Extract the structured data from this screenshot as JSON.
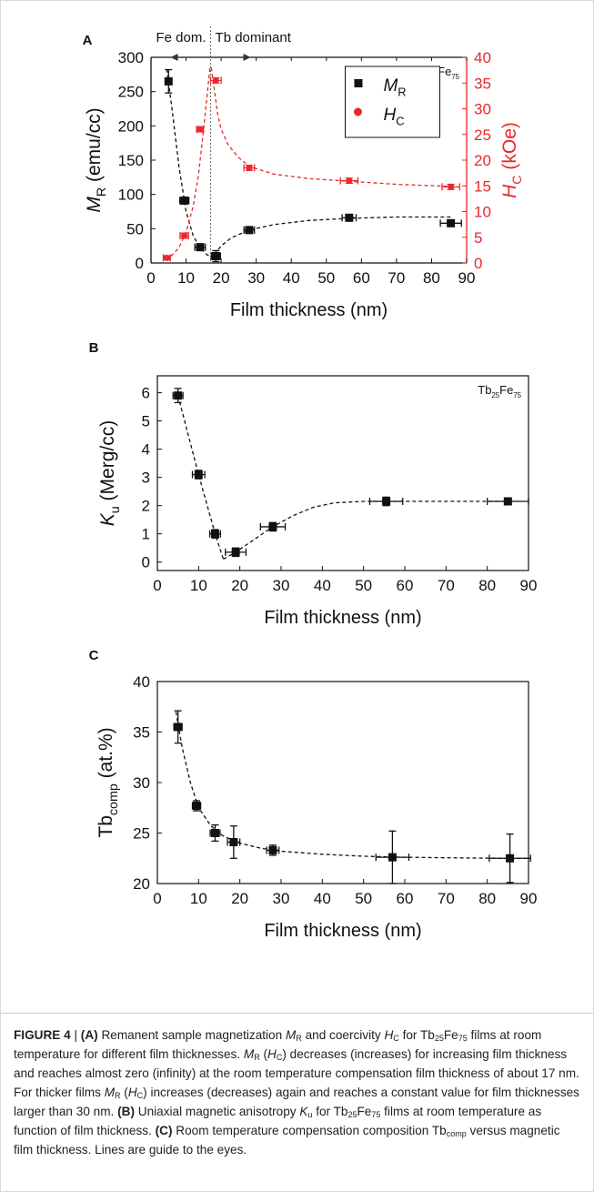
{
  "colors": {
    "black": "#111111",
    "red": "#e8282b",
    "panel_bg": "#ffffff"
  },
  "chart_data": [
    {
      "panel_letter": "A",
      "type": "scatter",
      "title": "",
      "xlabel": "Film thickness (nm)",
      "ylabel": "M_R (emu/cc)",
      "ylabel_right": "H_C (kOe)",
      "xlim": [
        0,
        90
      ],
      "ylim": [
        0,
        300
      ],
      "ylim_right": [
        0,
        40
      ],
      "xticks": [
        "0",
        "10",
        "20",
        "30",
        "40",
        "50",
        "60",
        "70",
        "80",
        "90"
      ],
      "yticks": [
        "0",
        "50",
        "100",
        "150",
        "200",
        "250",
        "300"
      ],
      "yticks_right": [
        "0",
        "5",
        "10",
        "15",
        "20",
        "25",
        "30",
        "35",
        "40"
      ],
      "sample_label": "Tb25Fe75",
      "annotations": {
        "left": "Fe dom.",
        "right": "Tb dominant",
        "compensation_x": 17
      },
      "legend": {
        "placement": "top-right",
        "entries": [
          "M_R",
          "H_C"
        ]
      },
      "series": [
        {
          "name": "M_R",
          "axis": "left",
          "color": "#111111",
          "marker": "square",
          "points": [
            {
              "x": 5,
              "y": 265,
              "xerr": 0,
              "yerr": 17
            },
            {
              "x": 9.5,
              "y": 91,
              "xerr": 1.3,
              "yerr": 4
            },
            {
              "x": 14,
              "y": 23,
              "xerr": 1.5,
              "yerr": 4
            },
            {
              "x": 18.5,
              "y": 10,
              "xerr": 1.3,
              "yerr": 8
            },
            {
              "x": 28,
              "y": 48,
              "xerr": 1.5,
              "yerr": 4
            },
            {
              "x": 56.5,
              "y": 66,
              "xerr": 2,
              "yerr": 4
            },
            {
              "x": 85.5,
              "y": 58,
              "xerr": 3,
              "yerr": 4
            }
          ],
          "fit_curves": [
            [
              [
                4.5,
                283
              ],
              [
                6,
                225
              ],
              [
                8,
                140
              ],
              [
                10,
                75
              ],
              [
                12,
                40
              ],
              [
                14,
                22
              ],
              [
                16,
                12
              ],
              [
                17,
                9
              ]
            ],
            [
              [
                17,
                5
              ],
              [
                18,
                12
              ],
              [
                20,
                25
              ],
              [
                23,
                37
              ],
              [
                28,
                48
              ],
              [
                35,
                56
              ],
              [
                45,
                62
              ],
              [
                56.5,
                65
              ],
              [
                70,
                67
              ],
              [
                85.5,
                67
              ]
            ]
          ]
        },
        {
          "name": "H_C",
          "axis": "right",
          "color": "#e8282b",
          "marker": "circle",
          "points": [
            {
              "x": 4.5,
              "y": 1,
              "xerr": 1,
              "yerr": 0.4
            },
            {
              "x": 9.5,
              "y": 5.3,
              "xerr": 1.2,
              "yerr": 0.5
            },
            {
              "x": 14,
              "y": 26,
              "xerr": 1,
              "yerr": 0.5
            },
            {
              "x": 18.5,
              "y": 35.5,
              "xerr": 1.5,
              "yerr": 0.5
            },
            {
              "x": 28,
              "y": 18.5,
              "xerr": 1.5,
              "yerr": 0.5
            },
            {
              "x": 56.5,
              "y": 16,
              "xerr": 2.5,
              "yerr": 0.5
            },
            {
              "x": 85.5,
              "y": 14.8,
              "xerr": 2.5,
              "yerr": 0.5
            }
          ],
          "fit_curves": [
            [
              [
                4,
                0.8
              ],
              [
                6,
                1.5
              ],
              [
                8,
                3
              ],
              [
                10,
                6
              ],
              [
                12,
                11
              ],
              [
                13.5,
                17
              ],
              [
                15,
                26
              ],
              [
                16.2,
                34
              ],
              [
                16.8,
                38
              ]
            ],
            [
              [
                17.2,
                38
              ],
              [
                18,
                34
              ],
              [
                19,
                29
              ],
              [
                20,
                26
              ],
              [
                22,
                23
              ],
              [
                25,
                20.5
              ],
              [
                28,
                18.8
              ],
              [
                35,
                17.3
              ],
              [
                45,
                16.4
              ],
              [
                56.5,
                15.9
              ],
              [
                70,
                15.3
              ],
              [
                85.5,
                14.9
              ]
            ]
          ]
        }
      ]
    },
    {
      "panel_letter": "B",
      "type": "scatter",
      "title": "",
      "xlabel": "Film thickness (nm)",
      "ylabel": "K_u (Merg/cc)",
      "xlim": [
        0,
        90
      ],
      "ylim": [
        -0.3,
        6.6
      ],
      "xticks": [
        "0",
        "10",
        "20",
        "30",
        "40",
        "50",
        "60",
        "70",
        "80",
        "90"
      ],
      "yticks": [
        "0",
        "1",
        "2",
        "3",
        "4",
        "5",
        "6"
      ],
      "sample_label": "Tb25Fe75",
      "series": [
        {
          "name": "",
          "color": "#111111",
          "marker": "square",
          "points": [
            {
              "x": 5,
              "y": 5.9,
              "xerr": 1.2,
              "yerr": 0.25
            },
            {
              "x": 10,
              "y": 3.1,
              "xerr": 1.5,
              "yerr": 0.15
            },
            {
              "x": 14,
              "y": 1.0,
              "xerr": 1.3,
              "yerr": 0.15
            },
            {
              "x": 19,
              "y": 0.35,
              "xerr": 2.5,
              "yerr": 0.15
            },
            {
              "x": 28,
              "y": 1.25,
              "xerr": 3,
              "yerr": 0.15
            },
            {
              "x": 55.5,
              "y": 2.15,
              "xerr": 4,
              "yerr": 0.15
            },
            {
              "x": 85,
              "y": 2.15,
              "xerr": 5,
              "yerr": 0.1
            }
          ],
          "fit_curves": [
            [
              [
                5,
                5.9
              ],
              [
                10,
                3.1
              ],
              [
                14,
                1.0
              ],
              [
                16,
                0.1
              ]
            ],
            [
              [
                16,
                0.1
              ],
              [
                19,
                0.35
              ],
              [
                23,
                0.75
              ],
              [
                28,
                1.25
              ],
              [
                33,
                1.65
              ],
              [
                38,
                1.95
              ],
              [
                43,
                2.1
              ],
              [
                50,
                2.15
              ],
              [
                60,
                2.15
              ],
              [
                70,
                2.15
              ],
              [
                86,
                2.15
              ]
            ]
          ]
        }
      ]
    },
    {
      "panel_letter": "C",
      "type": "scatter",
      "title": "",
      "xlabel": "Film thickness (nm)",
      "ylabel": "Tb_comp (at.%)",
      "xlim": [
        0,
        90
      ],
      "ylim": [
        20,
        40
      ],
      "xticks": [
        "0",
        "10",
        "20",
        "30",
        "40",
        "50",
        "60",
        "70",
        "80",
        "90"
      ],
      "yticks": [
        "20",
        "25",
        "30",
        "35",
        "40"
      ],
      "series": [
        {
          "name": "",
          "color": "#111111",
          "marker": "square",
          "points": [
            {
              "x": 5,
              "y": 35.5,
              "xerr": 1,
              "yerr": 1.6
            },
            {
              "x": 9.5,
              "y": 27.7,
              "xerr": 1,
              "yerr": 0.5
            },
            {
              "x": 14,
              "y": 25,
              "xerr": 1.2,
              "yerr": 0.8
            },
            {
              "x": 18.5,
              "y": 24.1,
              "xerr": 1.5,
              "yerr": 1.6
            },
            {
              "x": 28,
              "y": 23.3,
              "xerr": 1.5,
              "yerr": 0.5
            },
            {
              "x": 57,
              "y": 22.6,
              "xerr": 4,
              "yerr": 2.6
            },
            {
              "x": 85.5,
              "y": 22.5,
              "xerr": 5,
              "yerr": 2.4
            }
          ],
          "fit_curves": [
            [
              [
                4.5,
                37
              ],
              [
                6,
                33.5
              ],
              [
                8,
                30
              ],
              [
                10,
                27.5
              ],
              [
                13,
                25.7
              ],
              [
                16,
                24.7
              ],
              [
                20,
                24
              ],
              [
                25,
                23.5
              ],
              [
                30,
                23.2
              ],
              [
                40,
                22.9
              ],
              [
                50,
                22.7
              ],
              [
                60,
                22.6
              ],
              [
                70,
                22.55
              ],
              [
                85,
                22.5
              ],
              [
                90,
                22.5
              ]
            ]
          ]
        }
      ]
    }
  ],
  "caption": {
    "figure_label": "FIGURE 4",
    "separator": " | ",
    "segments": [
      {
        "t": "(A)",
        "b": true
      },
      {
        "t": " Remanent sample magnetization "
      },
      {
        "t": "M",
        "i": true
      },
      {
        "t": "R",
        "sub": true
      },
      {
        "t": " and coercivity "
      },
      {
        "t": "H",
        "i": true
      },
      {
        "t": "C",
        "sub": true
      },
      {
        "t": " for Tb"
      },
      {
        "t": "25",
        "sub": true
      },
      {
        "t": "Fe"
      },
      {
        "t": "75",
        "sub": true
      },
      {
        "t": " films at room temperature for different film thicknesses. "
      },
      {
        "t": "M",
        "i": true
      },
      {
        "t": "R",
        "sub": true
      },
      {
        "t": " ("
      },
      {
        "t": "H",
        "i": true
      },
      {
        "t": "C",
        "sub": true
      },
      {
        "t": ") decreases (increases) for increasing film thickness and reaches almost zero (infinity) at the room temperature compensation film thickness of about 17 nm. For thicker films "
      },
      {
        "t": "M",
        "i": true
      },
      {
        "t": "R",
        "sub": true
      },
      {
        "t": " ("
      },
      {
        "t": "H",
        "i": true
      },
      {
        "t": "C",
        "sub": true
      },
      {
        "t": ") increases (decreases) again and reaches a constant value for film thicknesses larger than 30 nm. "
      },
      {
        "t": "(B)",
        "b": true
      },
      {
        "t": " Uniaxial magnetic anisotropy "
      },
      {
        "t": "K",
        "i": true
      },
      {
        "t": "u",
        "sub": true
      },
      {
        "t": " for Tb"
      },
      {
        "t": "25",
        "sub": true
      },
      {
        "t": "Fe"
      },
      {
        "t": "75",
        "sub": true
      },
      {
        "t": " films at room temperature as function of film thickness. "
      },
      {
        "t": "(C)",
        "b": true
      },
      {
        "t": " Room temperature compensation composition Tb"
      },
      {
        "t": "comp",
        "sub": true
      },
      {
        "t": " versus magnetic film thickness. Lines are guide to the eyes."
      }
    ]
  }
}
